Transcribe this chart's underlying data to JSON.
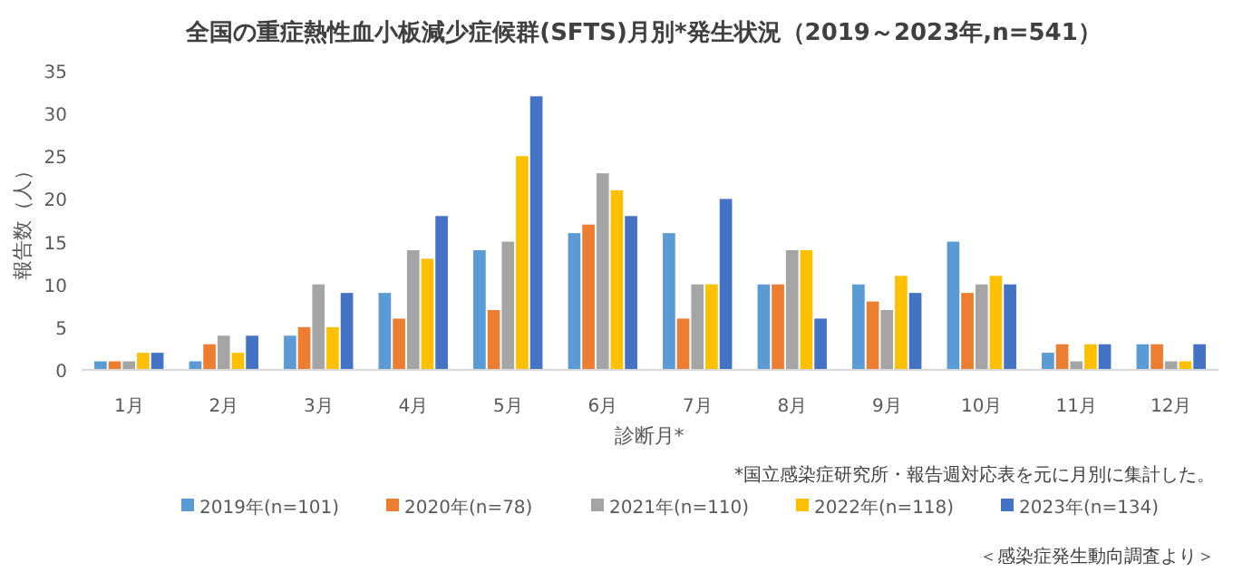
{
  "chart_data": {
    "type": "bar",
    "title": "全国の重症熱性血小板減少症候群(SFTS)月別*発生状況（2019～2023年,n=541）",
    "xlabel": "診断月*",
    "ylabel": "報告数（人）",
    "categories": [
      "1月",
      "2月",
      "3月",
      "4月",
      "5月",
      "6月",
      "7月",
      "8月",
      "9月",
      "10月",
      "11月",
      "12月"
    ],
    "series": [
      {
        "name": "2019年(n=101)",
        "color": "#5b9bd5",
        "values": [
          1,
          1,
          4,
          9,
          14,
          16,
          16,
          10,
          10,
          15,
          2,
          3
        ]
      },
      {
        "name": "2020年(n=78)",
        "color": "#ed7d31",
        "values": [
          1,
          3,
          5,
          6,
          7,
          17,
          6,
          10,
          8,
          9,
          3,
          3
        ]
      },
      {
        "name": "2021年(n=110)",
        "color": "#a5a5a5",
        "values": [
          1,
          4,
          10,
          14,
          15,
          23,
          10,
          14,
          7,
          10,
          1,
          1
        ]
      },
      {
        "name": "2022年(n=118)",
        "color": "#ffc000",
        "values": [
          2,
          2,
          5,
          13,
          25,
          21,
          10,
          14,
          11,
          11,
          3,
          1
        ]
      },
      {
        "name": "2023年(n=134)",
        "color": "#4472c4",
        "values": [
          2,
          4,
          9,
          18,
          32,
          18,
          20,
          6,
          9,
          10,
          3,
          3
        ]
      }
    ],
    "ylim": [
      0,
      35
    ],
    "yticks": [
      0,
      5,
      10,
      15,
      20,
      25,
      30,
      35
    ],
    "legend": "bottom",
    "annotations": [
      "*国立感染症研究所・報告週対応表を元に月別に集計した。",
      "＜感染症発生動向調査より＞"
    ]
  }
}
